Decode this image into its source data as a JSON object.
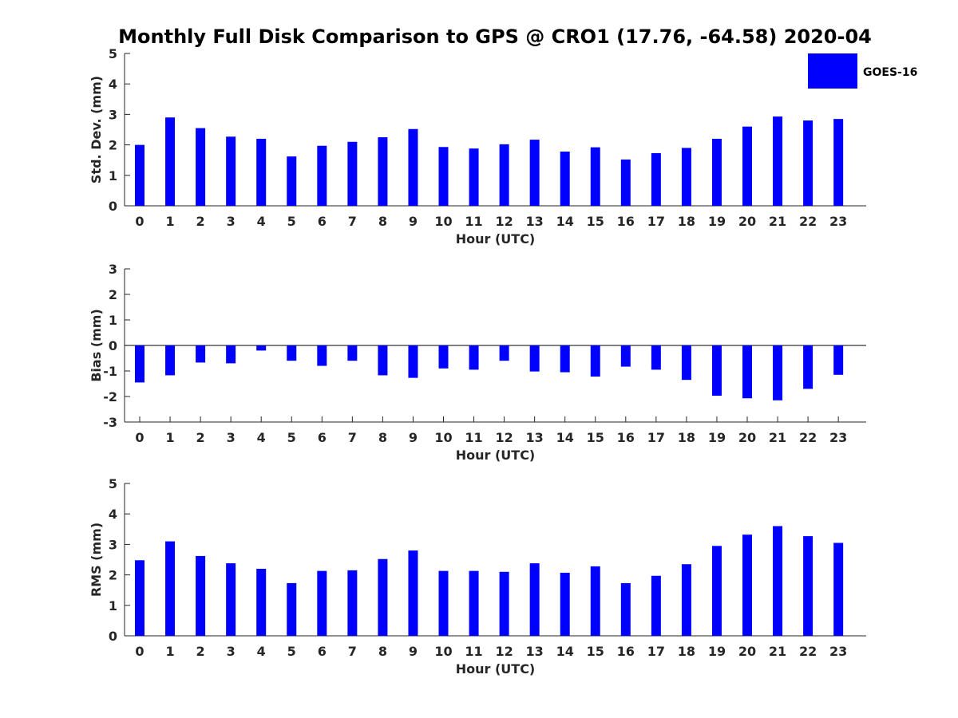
{
  "title": "Monthly Full Disk Comparison to GPS @ CRO1 (17.76, -64.58) 2020-04",
  "legend": {
    "label": "GOES-16",
    "color": "#0000ff",
    "placement": "top-right"
  },
  "chart_data": [
    {
      "type": "bar",
      "ylabel": "Std. Dev. (mm)",
      "xlabel": "Hour (UTC)",
      "ylim": [
        0,
        5
      ],
      "yticks": [
        "0",
        "1",
        "2",
        "3",
        "4",
        "5"
      ],
      "categories": [
        "0",
        "1",
        "2",
        "3",
        "4",
        "5",
        "6",
        "7",
        "8",
        "9",
        "10",
        "11",
        "12",
        "13",
        "14",
        "15",
        "16",
        "17",
        "18",
        "19",
        "20",
        "21",
        "22",
        "23"
      ],
      "series": [
        {
          "name": "GOES-16",
          "values": [
            2.0,
            2.9,
            2.55,
            2.27,
            2.2,
            1.62,
            1.97,
            2.1,
            2.25,
            2.52,
            1.93,
            1.88,
            2.02,
            2.17,
            1.78,
            1.92,
            1.52,
            1.73,
            1.9,
            2.2,
            2.6,
            2.93,
            2.8,
            2.85
          ]
        }
      ]
    },
    {
      "type": "bar",
      "ylabel": "Bias (mm)",
      "xlabel": "Hour (UTC)",
      "ylim": [
        -3,
        3
      ],
      "yticks": [
        "-3",
        "-2",
        "-1",
        "0",
        "1",
        "2",
        "3"
      ],
      "categories": [
        "0",
        "1",
        "2",
        "3",
        "4",
        "5",
        "6",
        "7",
        "8",
        "9",
        "10",
        "11",
        "12",
        "13",
        "14",
        "15",
        "16",
        "17",
        "18",
        "19",
        "20",
        "21",
        "22",
        "23"
      ],
      "series": [
        {
          "name": "GOES-16",
          "values": [
            -1.45,
            -1.17,
            -0.67,
            -0.7,
            -0.2,
            -0.6,
            -0.8,
            -0.6,
            -1.17,
            -1.27,
            -0.9,
            -0.95,
            -0.6,
            -1.02,
            -1.05,
            -1.22,
            -0.83,
            -0.95,
            -1.35,
            -1.97,
            -2.07,
            -2.15,
            -1.7,
            -1.15
          ]
        }
      ]
    },
    {
      "type": "bar",
      "ylabel": "RMS (mm)",
      "xlabel": "Hour (UTC)",
      "ylim": [
        0,
        5
      ],
      "yticks": [
        "0",
        "1",
        "2",
        "3",
        "4",
        "5"
      ],
      "categories": [
        "0",
        "1",
        "2",
        "3",
        "4",
        "5",
        "6",
        "7",
        "8",
        "9",
        "10",
        "11",
        "12",
        "13",
        "14",
        "15",
        "16",
        "17",
        "18",
        "19",
        "20",
        "21",
        "22",
        "23"
      ],
      "series": [
        {
          "name": "GOES-16",
          "values": [
            2.48,
            3.1,
            2.62,
            2.38,
            2.2,
            1.73,
            2.13,
            2.15,
            2.52,
            2.8,
            2.13,
            2.13,
            2.1,
            2.38,
            2.07,
            2.28,
            1.73,
            1.97,
            2.35,
            2.95,
            3.32,
            3.6,
            3.27,
            3.05
          ]
        }
      ]
    }
  ]
}
